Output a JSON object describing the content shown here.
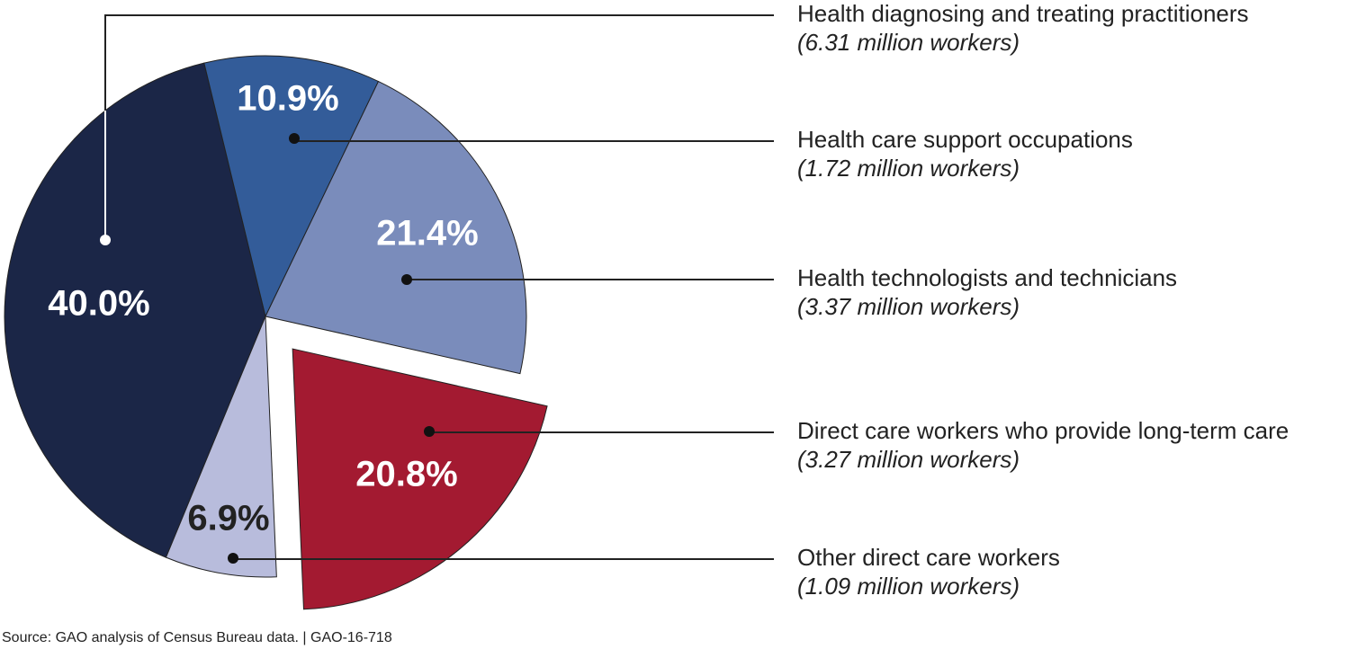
{
  "chart_data": {
    "type": "pie",
    "categories": [
      "Health diagnosing and treating practitioners",
      "Health care support occupations",
      "Health technologists and technicians",
      "Direct care workers who provide long-term care",
      "Other direct care workers"
    ],
    "category_notes": [
      "(6.31 million workers)",
      "(1.72 million workers)",
      "(3.37 million workers)",
      "(3.27 million workers)",
      "(1.09 million workers)"
    ],
    "values": [
      40.0,
      10.9,
      21.4,
      20.8,
      6.9
    ],
    "value_labels": [
      "40.0%",
      "10.9%",
      "21.4%",
      "20.8%",
      "6.9%"
    ],
    "colors": [
      "#1b2647",
      "#335c99",
      "#7a8cbb",
      "#a31a31",
      "#b8bcdc"
    ],
    "exploded": [
      false,
      false,
      false,
      true,
      false
    ],
    "source": "Source: GAO analysis of Census Bureau data.  |  GAO-16-718"
  }
}
